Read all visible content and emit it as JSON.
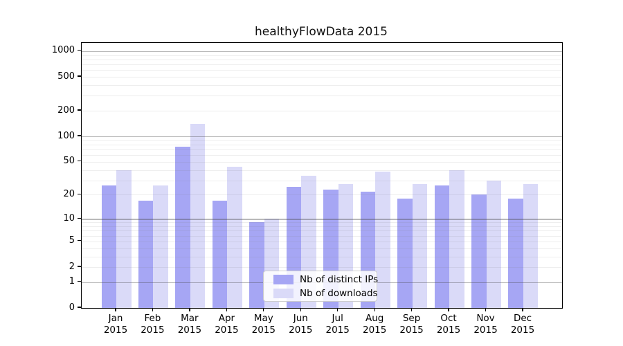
{
  "chart_data": {
    "type": "bar",
    "title": "healthyFlowData 2015",
    "categories": [
      "Jan",
      "Feb",
      "Mar",
      "Apr",
      "May",
      "Jun",
      "Jul",
      "Aug",
      "Sep",
      "Oct",
      "Nov",
      "Dec"
    ],
    "x_tick_year": "2015",
    "series": [
      {
        "name": "Nb of distinct IPs",
        "color": "#a6a6f4",
        "values": [
          26,
          17,
          75,
          17,
          9,
          25,
          23,
          22,
          18,
          26,
          20,
          18
        ]
      },
      {
        "name": "Nb of downloads",
        "color": "#dadaf8",
        "values": [
          40,
          26,
          140,
          44,
          10,
          34,
          27,
          38,
          27,
          40,
          30,
          27
        ]
      }
    ],
    "y_scale": "log(1+x)",
    "y_ticks": [
      0,
      1,
      2,
      5,
      10,
      20,
      50,
      100,
      200,
      500,
      1000
    ],
    "ylim": [
      0,
      1200
    ],
    "grid": {
      "major_gridlines_at": [
        1,
        10,
        100,
        1000
      ],
      "minor_gridlines": true,
      "orientation": "horizontal"
    },
    "legend": {
      "position": "lower center",
      "entries": [
        "Nb of distinct IPs",
        "Nb of downloads"
      ]
    }
  }
}
